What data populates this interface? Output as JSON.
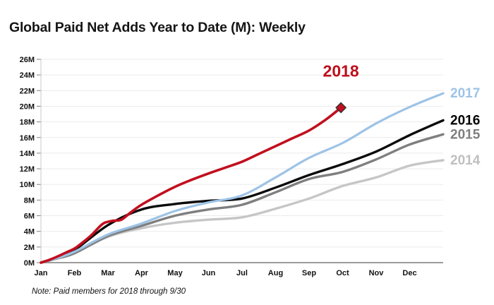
{
  "title": "Global Paid Net Adds Year to Date (M): Weekly",
  "note": "Note: Paid members for 2018 through 9/30",
  "chart_data": {
    "type": "line",
    "title": "Global Paid Net Adds Year to Date (M): Weekly",
    "xlabel": "",
    "ylabel": "",
    "x_unit": "months elapsed since Jan 1",
    "y_unit": "millions of paid net adds",
    "ylim": [
      0,
      26
    ],
    "y_tick_step": 2,
    "y_tick_labels": [
      "0M",
      "2M",
      "4M",
      "6M",
      "8M",
      "10M",
      "12M",
      "14M",
      "16M",
      "18M",
      "20M",
      "22M",
      "24M",
      "26M"
    ],
    "x_tick_labels": [
      "Jan",
      "Feb",
      "Mar",
      "Apr",
      "May",
      "Jun",
      "Jul",
      "Aug",
      "Sep",
      "Oct",
      "Nov",
      "Dec"
    ],
    "grid": "horizontal",
    "legend_position": "right-edge-labels",
    "colors": {
      "gridline": "#EBEBEB",
      "axis_line": "#9B9B9B",
      "tick_mark": "#7F7F7F",
      "left_axis_line": "#C9C9C9"
    },
    "annotation": {
      "text": "2018",
      "color": "#BE0E1C",
      "x_month": 8.95,
      "y_value": 19.8,
      "offset_y": -44
    },
    "series": [
      {
        "name": "2014",
        "color": "#C6C6C6",
        "label_color": "#BFBFBF",
        "width": 3.4,
        "marker": "none",
        "points": [
          [
            0,
            0
          ],
          [
            0.5,
            0.55
          ],
          [
            1,
            1.2
          ],
          [
            2,
            3.3
          ],
          [
            3,
            4.4
          ],
          [
            4,
            5.1
          ],
          [
            5,
            5.5
          ],
          [
            6,
            5.8
          ],
          [
            7,
            6.9
          ],
          [
            8,
            8.2
          ],
          [
            9,
            9.8
          ],
          [
            10,
            10.9
          ],
          [
            11,
            12.4
          ],
          [
            12,
            13.1
          ]
        ]
      },
      {
        "name": "2015",
        "color": "#7F7F7F",
        "label_color": "#7F7F7F",
        "width": 3.4,
        "marker": "none",
        "points": [
          [
            0,
            0
          ],
          [
            0.5,
            0.55
          ],
          [
            1,
            1.2
          ],
          [
            2,
            3.4
          ],
          [
            3,
            4.7
          ],
          [
            4,
            6.0
          ],
          [
            5,
            6.8
          ],
          [
            6,
            7.4
          ],
          [
            7,
            9.0
          ],
          [
            8,
            10.7
          ],
          [
            9,
            11.6
          ],
          [
            10,
            13.2
          ],
          [
            11,
            15.1
          ],
          [
            12,
            16.4
          ]
        ]
      },
      {
        "name": "2016",
        "color": "#0B0B0B",
        "label_color": "#000000",
        "width": 3.4,
        "marker": "none",
        "points": [
          [
            0,
            0
          ],
          [
            0.5,
            0.7
          ],
          [
            1,
            1.6
          ],
          [
            2,
            4.8
          ],
          [
            3,
            6.8
          ],
          [
            4,
            7.5
          ],
          [
            5,
            7.9
          ],
          [
            6,
            8.2
          ],
          [
            7,
            9.6
          ],
          [
            8,
            11.2
          ],
          [
            9,
            12.6
          ],
          [
            10,
            14.2
          ],
          [
            11,
            16.3
          ],
          [
            12,
            18.2
          ]
        ]
      },
      {
        "name": "2017",
        "color": "#9DC3E6",
        "label_color": "#9DC3E6",
        "width": 3.2,
        "marker": "none",
        "points": [
          [
            0,
            0
          ],
          [
            0.5,
            0.6
          ],
          [
            1,
            1.4
          ],
          [
            2,
            3.6
          ],
          [
            3,
            5.0
          ],
          [
            4,
            6.6
          ],
          [
            5,
            7.7
          ],
          [
            6,
            8.6
          ],
          [
            7,
            10.9
          ],
          [
            8,
            13.4
          ],
          [
            9,
            15.3
          ],
          [
            10,
            17.8
          ],
          [
            11,
            19.9
          ],
          [
            12,
            21.65
          ]
        ]
      },
      {
        "name": "2018",
        "color": "#C10F1E",
        "label_color": "#BE0E1C",
        "width": 3.6,
        "marker": "diamond",
        "marker_stroke": "#333333",
        "points": [
          [
            0,
            0
          ],
          [
            0.25,
            0.35
          ],
          [
            0.5,
            0.8
          ],
          [
            0.75,
            1.3
          ],
          [
            1,
            1.8
          ],
          [
            1.25,
            2.6
          ],
          [
            1.5,
            3.5
          ],
          [
            1.75,
            4.6
          ],
          [
            1.9,
            5.1
          ],
          [
            2.15,
            5.35
          ],
          [
            2.4,
            5.5
          ],
          [
            2.7,
            6.5
          ],
          [
            3,
            7.4
          ],
          [
            3.5,
            8.6
          ],
          [
            4,
            9.7
          ],
          [
            4.5,
            10.6
          ],
          [
            5,
            11.4
          ],
          [
            5.5,
            12.15
          ],
          [
            6,
            12.9
          ],
          [
            6.5,
            13.9
          ],
          [
            7,
            14.9
          ],
          [
            7.5,
            15.9
          ],
          [
            8,
            16.9
          ],
          [
            8.5,
            18.3
          ],
          [
            8.95,
            19.82
          ]
        ],
        "show_right_label": false
      }
    ],
    "right_labels": [
      {
        "series": "2017",
        "text": "2017",
        "color": "#9DC3E6"
      },
      {
        "series": "2016",
        "text": "2016",
        "color": "#000000"
      },
      {
        "series": "2015",
        "text": "2015",
        "color": "#7F7F7F"
      },
      {
        "series": "2014",
        "text": "2014",
        "color": "#BFBFBF"
      }
    ]
  }
}
